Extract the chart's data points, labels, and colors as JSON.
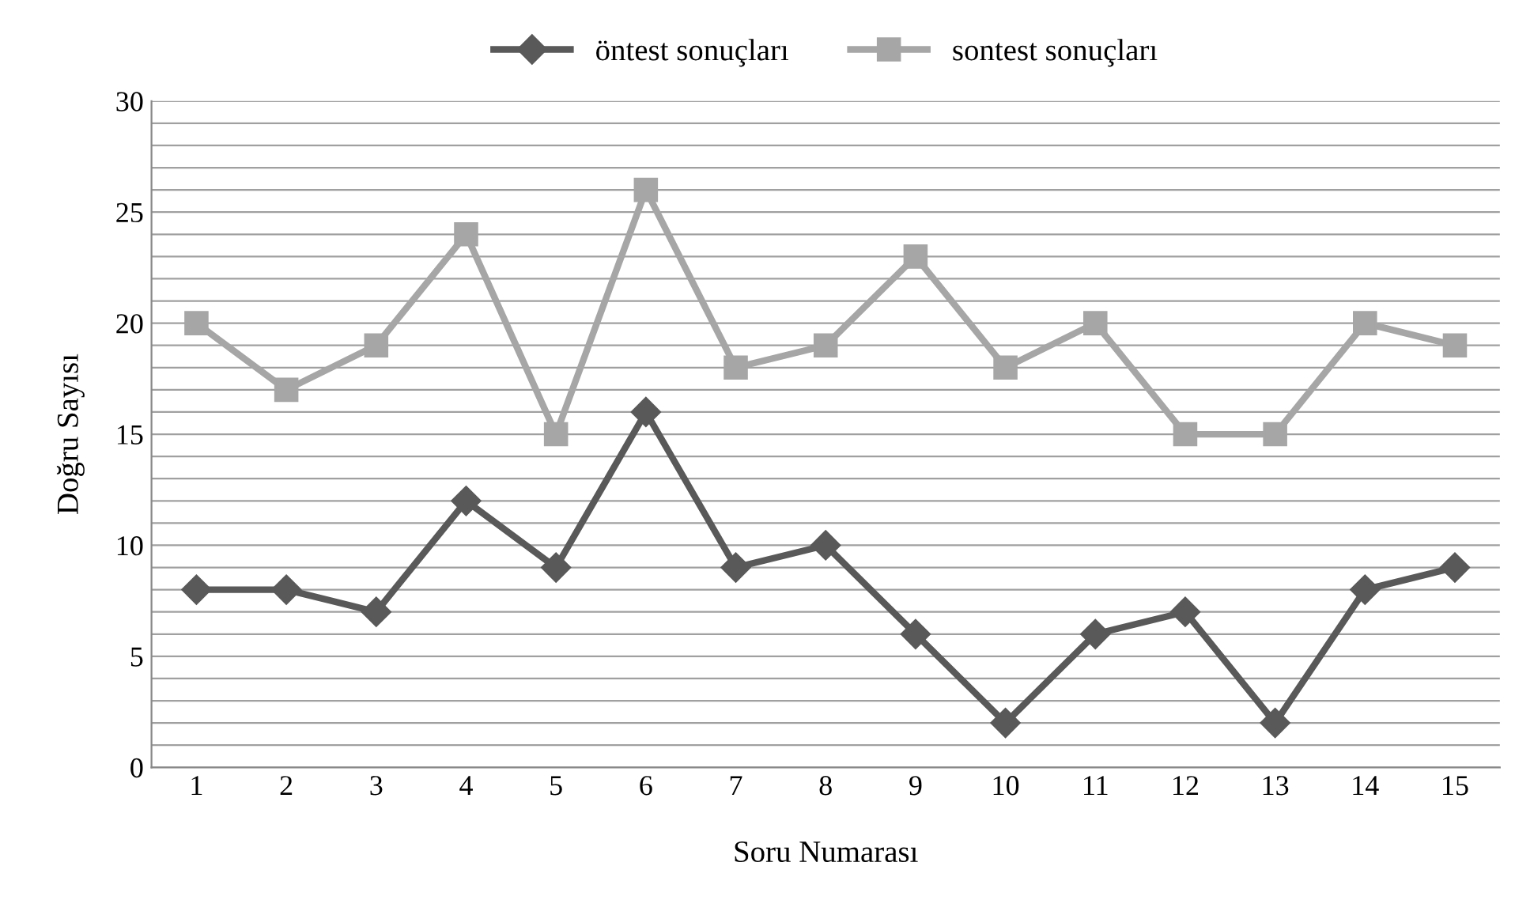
{
  "chart_data": {
    "type": "line",
    "xlabel": "Soru Numarası",
    "ylabel": "Doğru Sayısı",
    "categories": [
      "1",
      "2",
      "3",
      "4",
      "5",
      "6",
      "7",
      "8",
      "9",
      "10",
      "11",
      "12",
      "13",
      "14",
      "15"
    ],
    "series": [
      {
        "name": "öntest sonuçları",
        "color": "#595959",
        "marker": "diamond",
        "values": [
          8,
          8,
          7,
          12,
          9,
          16,
          9,
          10,
          6,
          2,
          6,
          7,
          2,
          8,
          9
        ]
      },
      {
        "name": "sontest sonuçları",
        "color": "#a6a6a6",
        "marker": "square",
        "values": [
          20,
          17,
          19,
          24,
          15,
          26,
          18,
          19,
          23,
          18,
          20,
          15,
          15,
          20,
          19
        ]
      }
    ],
    "ylim": [
      0,
      30
    ],
    "yticks": [
      0,
      {
        "value": 1,
        "label": null
      },
      {
        "value": 2,
        "label": null
      },
      {
        "value": 3,
        "label": null
      },
      {
        "value": 4,
        "label": null
      },
      5,
      {
        "value": 6,
        "label": null
      },
      {
        "value": 7,
        "label": null
      },
      {
        "value": 8,
        "label": null
      },
      {
        "value": 9,
        "label": null
      },
      10,
      {
        "value": 11,
        "label": null
      },
      {
        "value": 12,
        "label": null
      },
      {
        "value": 13,
        "label": null
      },
      {
        "value": 14,
        "label": null
      },
      15,
      {
        "value": 16,
        "label": null
      },
      {
        "value": 17,
        "label": null
      },
      {
        "value": 18,
        "label": null
      },
      {
        "value": 19,
        "label": null
      },
      20,
      {
        "value": 21,
        "label": null
      },
      {
        "value": 22,
        "label": null
      },
      {
        "value": 23,
        "label": null
      },
      {
        "value": 24,
        "label": null
      },
      25,
      {
        "value": 26,
        "label": null
      },
      {
        "value": 27,
        "label": null
      },
      {
        "value": 28,
        "label": null
      },
      {
        "value": 29,
        "label": null
      },
      30
    ],
    "grid": "y",
    "legend": "top",
    "line_style": "solid"
  }
}
